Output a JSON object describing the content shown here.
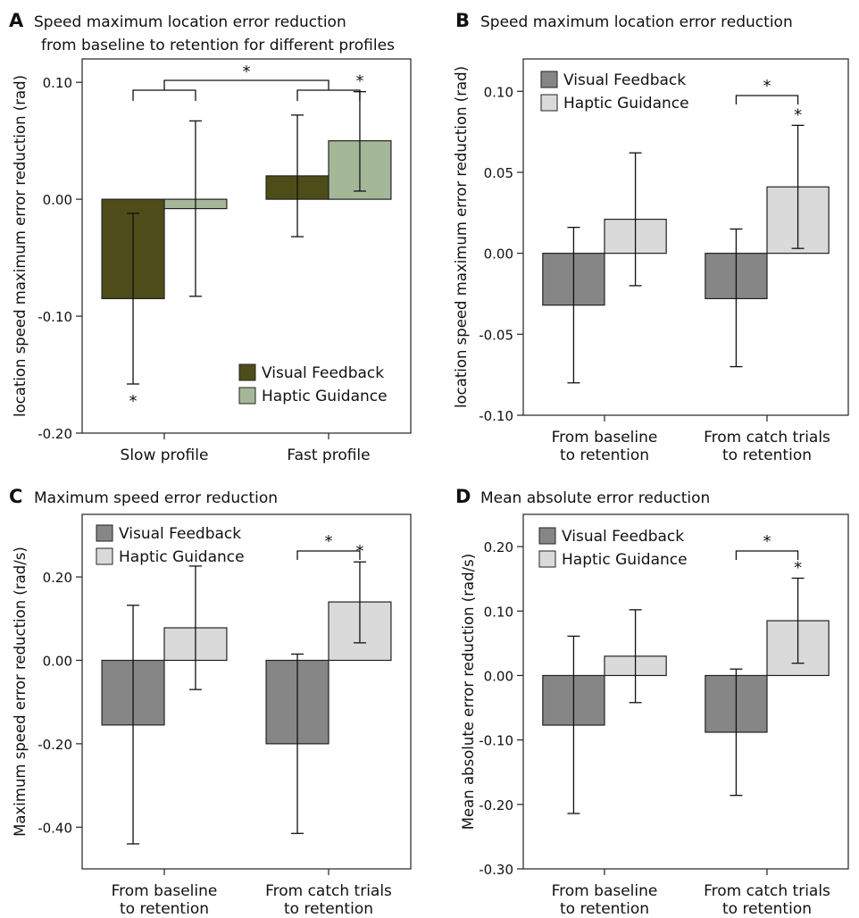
{
  "chart_data": [
    {
      "type": "bar",
      "panel": "A",
      "title": "Speed maximum location error reduction",
      "subtitle": "from baseline to retention for different profiles",
      "ylabel": "location speed maximum error reduction (rad)",
      "xlabel": "",
      "categories": [
        "Slow profile",
        "Fast profile"
      ],
      "ylim": [
        -0.2,
        0.12
      ],
      "yticks": [
        0.1,
        0.0,
        -0.1,
        -0.2
      ],
      "ytick_labels": [
        "0.10",
        "0.00",
        "-0.10",
        "-0.20"
      ],
      "grid": false,
      "legend_position": "bottom-right",
      "series": [
        {
          "name": "Visual Feedback",
          "color": "#4e4d1a",
          "values": [
            -0.085,
            0.02
          ],
          "err_low": [
            -0.158,
            -0.032
          ],
          "err_high": [
            -0.012,
            0.072
          ]
        },
        {
          "name": "Haptic Guidance",
          "color": "#a4b899",
          "values": [
            -0.008,
            0.05
          ],
          "err_low": [
            -0.083,
            0.007
          ],
          "err_high": [
            0.067,
            0.092
          ]
        }
      ],
      "annotations": {
        "star_symbol": "*",
        "bar_stars": [
          {
            "series": 0,
            "category": 0,
            "position": "below"
          },
          {
            "series": 1,
            "category": 1,
            "position": "above"
          }
        ],
        "top_bracket": true
      }
    },
    {
      "type": "bar",
      "panel": "B",
      "title": "Speed maximum location error reduction",
      "ylabel": "location speed maximum error reduction (rad)",
      "xlabel": "",
      "categories": [
        "From baseline|to retention",
        "From catch trials|to retention"
      ],
      "ylim": [
        -0.1,
        0.12
      ],
      "yticks": [
        0.1,
        0.05,
        0.0,
        -0.05,
        -0.1
      ],
      "ytick_labels": [
        "0.10",
        "0.05",
        "0.00",
        "-0.05",
        "-0.10"
      ],
      "grid": false,
      "legend_position": "top-left",
      "series": [
        {
          "name": "Visual Feedback",
          "color": "#868686",
          "values": [
            -0.032,
            -0.028
          ],
          "err_low": [
            -0.08,
            -0.07
          ],
          "err_high": [
            0.016,
            0.015
          ]
        },
        {
          "name": "Haptic Guidance",
          "color": "#dadada",
          "values": [
            0.021,
            0.041
          ],
          "err_low": [
            -0.02,
            0.003
          ],
          "err_high": [
            0.062,
            0.079
          ]
        }
      ],
      "annotations": {
        "star_symbol": "*",
        "bar_stars": [
          {
            "series": 1,
            "category": 1,
            "position": "above"
          }
        ],
        "pair_bracket_category": 1
      }
    },
    {
      "type": "bar",
      "panel": "C",
      "title": "Maximum speed error reduction",
      "ylabel": "Maximum speed error reduction (rad/s)",
      "xlabel": "",
      "categories": [
        "From baseline|to retention",
        "From catch trials|to retention"
      ],
      "ylim": [
        -0.5,
        0.35
      ],
      "yticks": [
        0.2,
        0.0,
        -0.2,
        -0.4
      ],
      "ytick_labels": [
        "0.20",
        "0.00",
        "-0.20",
        "-0.40"
      ],
      "grid": false,
      "legend_position": "top-left",
      "series": [
        {
          "name": "Visual Feedback",
          "color": "#868686",
          "values": [
            -0.155,
            -0.2
          ],
          "err_low": [
            -0.44,
            -0.415
          ],
          "err_high": [
            0.132,
            0.015
          ]
        },
        {
          "name": "Haptic Guidance",
          "color": "#dadada",
          "values": [
            0.078,
            0.14
          ],
          "err_low": [
            -0.07,
            0.042
          ],
          "err_high": [
            0.226,
            0.236
          ]
        }
      ],
      "annotations": {
        "star_symbol": "*",
        "bar_stars": [
          {
            "series": 1,
            "category": 1,
            "position": "above"
          }
        ],
        "pair_bracket_category": 1
      }
    },
    {
      "type": "bar",
      "panel": "D",
      "title": "Mean absolute error reduction",
      "ylabel": "Mean absolute error reduction (rad/s)",
      "xlabel": "",
      "categories": [
        "From baseline|to retention",
        "From catch trials|to retention"
      ],
      "ylim": [
        -0.3,
        0.25
      ],
      "yticks": [
        0.2,
        0.1,
        0.0,
        -0.1,
        -0.2,
        -0.3
      ],
      "ytick_labels": [
        "0.20",
        "0.10",
        "0.00",
        "-0.10",
        "-0.20",
        "-0.30"
      ],
      "grid": false,
      "legend_position": "top-left",
      "series": [
        {
          "name": "Visual Feedback",
          "color": "#868686",
          "values": [
            -0.077,
            -0.088
          ],
          "err_low": [
            -0.214,
            -0.186
          ],
          "err_high": [
            0.061,
            0.01
          ]
        },
        {
          "name": "Haptic Guidance",
          "color": "#dadada",
          "values": [
            0.03,
            0.085
          ],
          "err_low": [
            -0.042,
            0.019
          ],
          "err_high": [
            0.102,
            0.151
          ]
        }
      ],
      "annotations": {
        "star_symbol": "*",
        "bar_stars": [
          {
            "series": 1,
            "category": 1,
            "position": "above"
          }
        ],
        "pair_bracket_category": 1
      }
    }
  ]
}
